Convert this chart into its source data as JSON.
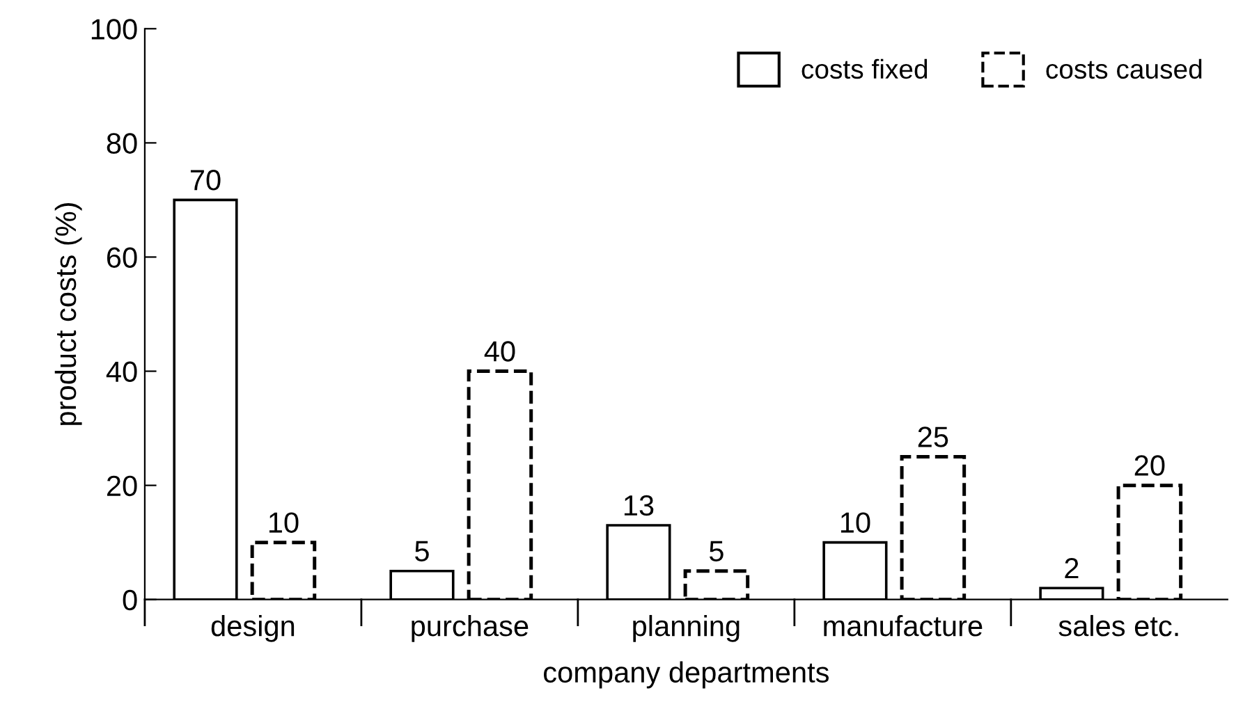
{
  "chart_data": {
    "type": "bar",
    "xlabel": "company departments",
    "ylabel": "product costs (%)",
    "categories": [
      "design",
      "purchase",
      "planning",
      "manufacture",
      "sales etc."
    ],
    "series": [
      {
        "name": "costs fixed",
        "color": "#000000",
        "line_style": "solid",
        "values": [
          70,
          5,
          13,
          10,
          2
        ]
      },
      {
        "name": "costs caused",
        "color": "#000000",
        "line_style": "dashed",
        "values": [
          10,
          40,
          5,
          25,
          20
        ]
      }
    ],
    "ylim": [
      0,
      100
    ],
    "yticks": [
      0,
      20,
      40,
      60,
      80,
      100
    ],
    "data_labels": true,
    "grid": false,
    "legend": "top right"
  }
}
